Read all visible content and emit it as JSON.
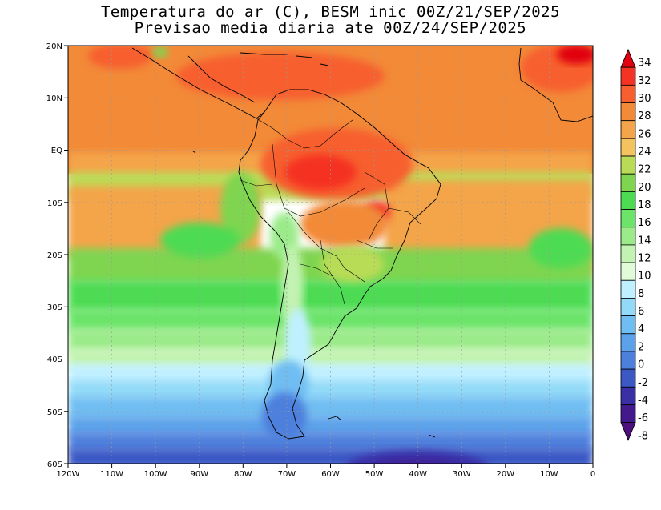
{
  "title": {
    "line1": "Temperatura do ar (C), BESM inic 00Z/21/SEP/2025",
    "line2": "Previsao media diaria ate 00Z/24/SEP/2025"
  },
  "map": {
    "lon_labels": [
      "120W",
      "110W",
      "100W",
      "90W",
      "80W",
      "70W",
      "60W",
      "50W",
      "40W",
      "30W",
      "20W",
      "10W",
      "0"
    ],
    "lat_labels": [
      "20N",
      "10N",
      "EQ",
      "10S",
      "20S",
      "30S",
      "40S",
      "50S",
      "60S"
    ],
    "lon_range": [
      -120,
      0
    ],
    "lat_range": [
      -60,
      20
    ],
    "grid": "dotted"
  },
  "colorbar": {
    "labels": [
      "34",
      "32",
      "30",
      "28",
      "26",
      "24",
      "22",
      "20",
      "18",
      "16",
      "14",
      "12",
      "10",
      "8",
      "6",
      "4",
      "2",
      "0",
      "-2",
      "-4",
      "-6",
      "-8"
    ],
    "colors": [
      "#e0000f",
      "#f53324",
      "#f75f2e",
      "#f28a38",
      "#f4a44a",
      "#f2c35e",
      "#b9dc56",
      "#7fd54f",
      "#4ddb52",
      "#6ce46a",
      "#9beb8a",
      "#c3f3b2",
      "#e1fbd9",
      "#bff0ff",
      "#92daf8",
      "#6fbdf2",
      "#5ba2ea",
      "#4d7fdc",
      "#3b58c5",
      "#3a2fa5",
      "#421a8e",
      "#4d107c"
    ]
  }
}
